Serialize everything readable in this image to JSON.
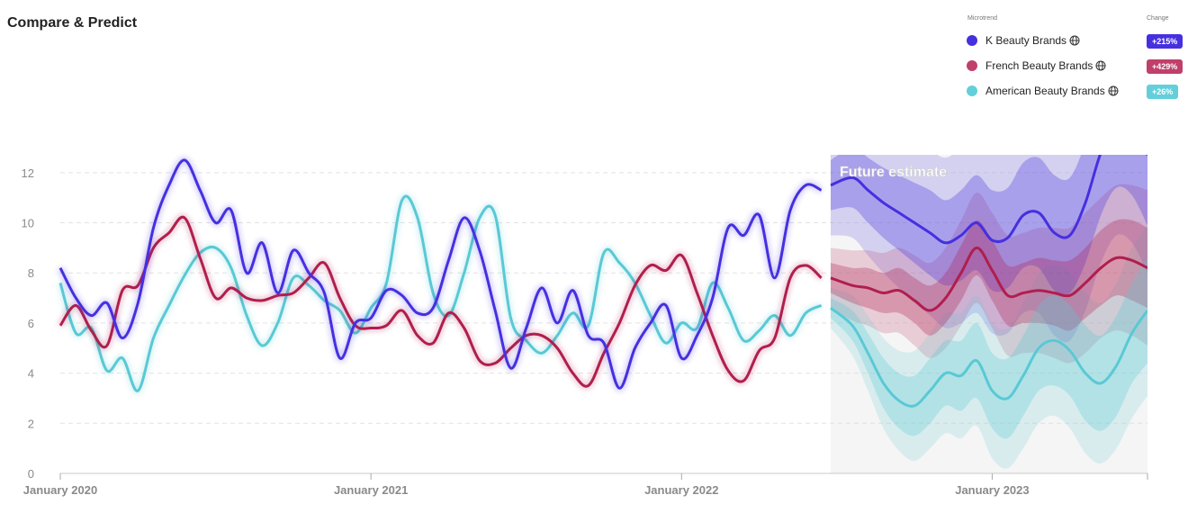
{
  "header": {
    "title": "Compare & Predict"
  },
  "legend": {
    "microtrend_header": "Microtrend",
    "change_header": "Change",
    "items": [
      {
        "name": "K Beauty Brands",
        "change": "+215%",
        "color": "#4530e0",
        "icon": "globe-icon"
      },
      {
        "name": "French Beauty Brands",
        "change": "+429%",
        "color": "#c0406a",
        "icon": "globe-icon"
      },
      {
        "name": "American Beauty Brands",
        "change": "+26%",
        "color": "#62cfda",
        "icon": "globe-icon"
      }
    ]
  },
  "chart_data": {
    "type": "line",
    "title": "",
    "xlabel": "",
    "ylabel": "",
    "ylim": [
      0,
      13
    ],
    "yticks": [
      0,
      2,
      4,
      6,
      8,
      10,
      12
    ],
    "grid": true,
    "x_ticks": [
      "January 2020",
      "January 2021",
      "January 2022",
      "January 2023"
    ],
    "x_tick_positions": [
      2020.0,
      2021.0,
      2022.0,
      2023.0
    ],
    "xlim": [
      2020.0,
      2023.5
    ],
    "forecast_start": 2022.48,
    "forecast_label": "Future estimate",
    "x": [
      2020.0,
      2020.05,
      2020.1,
      2020.15,
      2020.2,
      2020.25,
      2020.3,
      2020.35,
      2020.4,
      2020.45,
      2020.5,
      2020.55,
      2020.6,
      2020.65,
      2020.7,
      2020.75,
      2020.8,
      2020.85,
      2020.9,
      2020.95,
      2021.0,
      2021.05,
      2021.1,
      2021.15,
      2021.2,
      2021.25,
      2021.3,
      2021.35,
      2021.4,
      2021.45,
      2021.5,
      2021.55,
      2021.6,
      2021.65,
      2021.7,
      2021.75,
      2021.8,
      2021.85,
      2021.9,
      2021.95,
      2022.0,
      2022.05,
      2022.1,
      2022.15,
      2022.2,
      2022.25,
      2022.3,
      2022.35,
      2022.4,
      2022.45
    ],
    "forecast_x": [
      2022.48,
      2022.55,
      2022.6,
      2022.65,
      2022.7,
      2022.75,
      2022.8,
      2022.85,
      2022.9,
      2022.95,
      2023.0,
      2023.05,
      2023.1,
      2023.15,
      2023.2,
      2023.25,
      2023.3,
      2023.35,
      2023.4,
      2023.45,
      2023.5
    ],
    "series": [
      {
        "name": "K Beauty Brands",
        "color": "#4530e0",
        "values": [
          8.2,
          7.0,
          6.3,
          6.8,
          5.4,
          6.8,
          9.8,
          11.5,
          12.5,
          11.3,
          10.0,
          10.5,
          8.0,
          9.2,
          7.2,
          8.9,
          8.0,
          7.2,
          4.6,
          6.0,
          6.2,
          7.3,
          7.1,
          6.4,
          6.6,
          8.5,
          10.2,
          8.9,
          6.5,
          4.2,
          5.8,
          7.4,
          6.0,
          7.3,
          5.5,
          5.2,
          3.4,
          5.0,
          6.0,
          6.7,
          4.6,
          5.5,
          7.0,
          9.8,
          9.5,
          10.3,
          7.8,
          10.5,
          11.5,
          11.3
        ],
        "forecast": [
          11.5,
          11.8,
          11.3,
          10.8,
          10.4,
          10.0,
          9.6,
          9.2,
          9.5,
          10.0,
          9.3,
          9.4,
          10.3,
          10.4,
          9.6,
          9.5,
          10.8,
          12.8,
          14.0,
          13.8,
          12.7
        ],
        "forecast_inner": [
          1.0,
          1.2,
          1.3,
          1.4,
          1.5,
          1.6,
          1.7,
          1.7,
          1.8,
          1.9,
          2.0,
          2.0,
          2.1,
          2.2,
          2.3,
          2.3,
          2.4,
          2.5,
          2.6,
          2.7,
          2.8
        ],
        "forecast_outer": [
          2.0,
          2.4,
          2.6,
          2.8,
          3.0,
          3.2,
          3.3,
          3.4,
          3.5,
          3.6,
          3.7,
          3.8,
          3.9,
          4.0,
          4.1,
          4.2,
          4.3,
          4.4,
          4.5,
          4.6,
          4.7
        ]
      },
      {
        "name": "French Beauty Brands",
        "color": "#b01e4e",
        "values": [
          5.9,
          6.7,
          5.7,
          5.1,
          7.3,
          7.5,
          9.0,
          9.6,
          10.2,
          8.6,
          7.0,
          7.4,
          7.0,
          6.9,
          7.1,
          7.2,
          7.8,
          8.4,
          7.0,
          5.9,
          5.8,
          5.9,
          6.5,
          5.5,
          5.2,
          6.4,
          5.8,
          4.5,
          4.4,
          5.0,
          5.5,
          5.5,
          5.0,
          4.0,
          3.5,
          4.8,
          6.0,
          7.5,
          8.3,
          8.1,
          8.7,
          7.2,
          5.5,
          4.1,
          3.7,
          4.9,
          5.4,
          7.8,
          8.3,
          7.8
        ],
        "forecast": [
          7.8,
          7.5,
          7.4,
          7.2,
          7.3,
          6.9,
          6.5,
          7.0,
          8.0,
          9.0,
          8.1,
          7.1,
          7.2,
          7.3,
          7.2,
          7.1,
          7.6,
          8.2,
          8.6,
          8.5,
          8.2
        ],
        "forecast_inner": [
          0.6,
          0.7,
          0.8,
          0.8,
          0.9,
          0.9,
          1.0,
          1.0,
          1.1,
          1.1,
          1.2,
          1.2,
          1.2,
          1.3,
          1.3,
          1.4,
          1.4,
          1.5,
          1.5,
          1.6,
          1.6
        ],
        "forecast_outer": [
          1.2,
          1.4,
          1.5,
          1.6,
          1.7,
          1.8,
          1.9,
          2.0,
          2.1,
          2.2,
          2.3,
          2.4,
          2.4,
          2.5,
          2.6,
          2.7,
          2.8,
          2.8,
          2.9,
          3.0,
          3.1
        ]
      },
      {
        "name": "American Beauty Brands",
        "color": "#59c9d4",
        "values": [
          7.6,
          5.6,
          5.8,
          4.1,
          4.6,
          3.3,
          5.4,
          6.7,
          7.9,
          8.8,
          9.0,
          8.2,
          6.3,
          5.1,
          6.0,
          7.8,
          7.5,
          6.9,
          6.5,
          5.6,
          6.6,
          7.6,
          10.9,
          10.2,
          7.2,
          6.3,
          8.0,
          10.2,
          10.3,
          6.2,
          5.3,
          4.8,
          5.5,
          6.4,
          5.9,
          8.8,
          8.4,
          7.6,
          6.3,
          5.2,
          6.0,
          5.8,
          7.6,
          6.6,
          5.3,
          5.7,
          6.3,
          5.5,
          6.4,
          6.7
        ],
        "forecast": [
          6.6,
          5.9,
          4.8,
          3.6,
          2.9,
          2.7,
          3.3,
          4.0,
          3.9,
          4.5,
          3.3,
          3.0,
          3.9,
          5.0,
          5.3,
          4.9,
          4.0,
          3.6,
          4.3,
          5.6,
          6.5
        ],
        "forecast_inner": [
          0.4,
          0.6,
          0.8,
          1.0,
          1.1,
          1.2,
          1.3,
          1.3,
          1.4,
          1.5,
          1.5,
          1.6,
          1.6,
          1.7,
          1.8,
          1.8,
          1.9,
          1.9,
          2.0,
          2.0,
          2.1
        ],
        "forecast_outer": [
          0.8,
          1.2,
          1.5,
          1.8,
          2.0,
          2.2,
          2.3,
          2.4,
          2.5,
          2.6,
          2.7,
          2.8,
          2.9,
          3.0,
          3.0,
          3.1,
          3.2,
          3.2,
          3.3,
          3.4,
          3.4
        ]
      }
    ]
  }
}
